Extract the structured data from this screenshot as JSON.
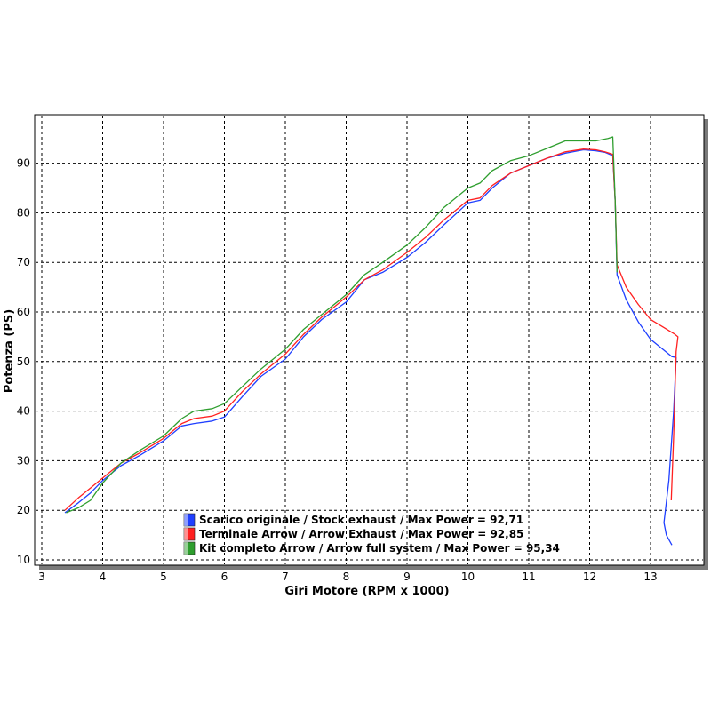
{
  "chart_data": {
    "type": "line",
    "title": "",
    "xlabel": "Giri Motore (RPM x 1000)",
    "ylabel": "Potenza (PS)",
    "xlim": [
      3,
      14
    ],
    "ylim": [
      10,
      98
    ],
    "xticks": [
      3,
      4,
      5,
      6,
      7,
      8,
      9,
      10,
      11,
      12,
      13
    ],
    "yticks": [
      10,
      20,
      30,
      40,
      50,
      60,
      70,
      80,
      90
    ],
    "grid": true,
    "legend_position": "bottom-left",
    "series": [
      {
        "name": "Scarico originale / Stock exhaust / Max Power = 92,71",
        "color": "#1f3fff",
        "x": [
          3.38,
          3.6,
          3.8,
          4.0,
          4.3,
          4.6,
          5.0,
          5.3,
          5.5,
          5.8,
          6.0,
          6.3,
          6.6,
          7.0,
          7.3,
          7.6,
          8.0,
          8.3,
          8.6,
          9.0,
          9.3,
          9.6,
          10.0,
          10.2,
          10.4,
          10.7,
          11.0,
          11.3,
          11.6,
          11.9,
          12.1,
          12.25,
          12.38,
          12.42,
          12.45,
          12.6,
          12.8,
          13.0,
          13.2,
          13.35,
          13.42,
          13.38,
          13.3,
          13.22,
          13.26,
          13.35
        ],
        "y": [
          19.5,
          21.5,
          23.5,
          26.0,
          29.0,
          31.0,
          34.0,
          37.0,
          37.5,
          38.0,
          38.8,
          43.0,
          47.0,
          50.5,
          55.0,
          58.5,
          62.0,
          66.5,
          68.0,
          71.0,
          74.0,
          77.5,
          82.0,
          82.5,
          85.0,
          88.0,
          89.5,
          91.0,
          92.0,
          92.7,
          92.5,
          92.2,
          91.5,
          82.0,
          67.5,
          62.5,
          58.0,
          54.5,
          52.5,
          51.0,
          50.8,
          40.0,
          26.0,
          17.5,
          15.0,
          13.0
        ]
      },
      {
        "name": "Terminale Arrow / Arrow Exhaust / Max Power = 92,85",
        "color": "#ff2020",
        "x": [
          3.38,
          3.6,
          3.8,
          4.0,
          4.3,
          4.6,
          5.0,
          5.3,
          5.5,
          5.8,
          6.0,
          6.3,
          6.6,
          7.0,
          7.3,
          7.6,
          8.0,
          8.3,
          8.6,
          9.0,
          9.3,
          9.6,
          10.0,
          10.2,
          10.4,
          10.7,
          11.0,
          11.3,
          11.6,
          11.9,
          12.1,
          12.25,
          12.38,
          12.42,
          12.45,
          12.6,
          12.8,
          13.0,
          13.2,
          13.4,
          13.45,
          13.42,
          13.38,
          13.34
        ],
        "y": [
          20.0,
          22.5,
          24.5,
          26.5,
          29.5,
          31.5,
          34.5,
          37.5,
          38.5,
          39.0,
          40.0,
          44.0,
          47.5,
          51.5,
          55.5,
          59.0,
          63.0,
          66.5,
          68.5,
          72.0,
          75.0,
          78.5,
          82.5,
          83.0,
          85.5,
          88.0,
          89.5,
          91.0,
          92.3,
          92.85,
          92.7,
          92.3,
          91.8,
          82.0,
          69.5,
          65.0,
          61.5,
          58.5,
          57.0,
          55.5,
          55.0,
          52.0,
          35.0,
          22.0
        ],
        "y_note": ""
      },
      {
        "name": "Kit completo Arrow / Arrow full system / Max Power = 95,34",
        "color": "#2e9e2e",
        "x": [
          3.4,
          3.6,
          3.8,
          4.0,
          4.3,
          4.6,
          5.0,
          5.3,
          5.5,
          5.8,
          6.0,
          6.3,
          6.6,
          7.0,
          7.3,
          7.6,
          8.0,
          8.3,
          8.6,
          9.0,
          9.3,
          9.6,
          10.0,
          10.2,
          10.4,
          10.7,
          11.0,
          11.3,
          11.6,
          11.9,
          12.1,
          12.3,
          12.38,
          12.42,
          12.45
        ],
        "y": [
          19.5,
          20.5,
          22.0,
          25.5,
          29.5,
          32.0,
          35.0,
          38.5,
          40.0,
          40.5,
          41.5,
          45.0,
          48.5,
          52.5,
          56.5,
          59.5,
          63.5,
          67.5,
          70.0,
          73.5,
          77.0,
          81.0,
          85.0,
          86.0,
          88.5,
          90.5,
          91.5,
          93.0,
          94.5,
          94.5,
          94.5,
          95.0,
          95.3,
          82.0,
          68.0
        ]
      }
    ]
  }
}
